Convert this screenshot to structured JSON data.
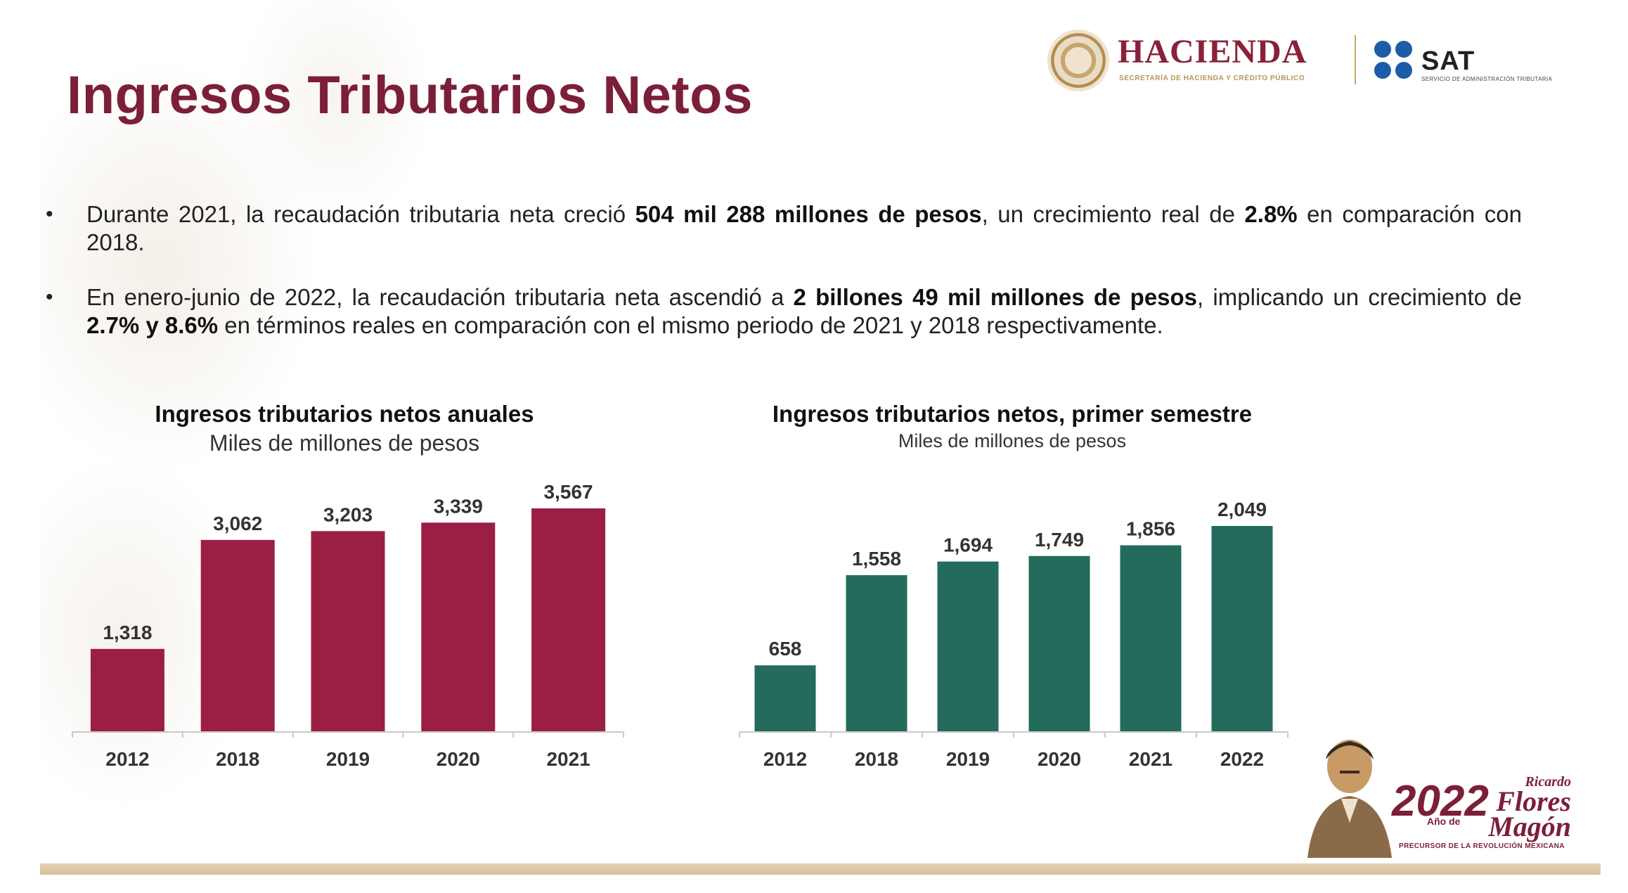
{
  "header": {
    "title": "Ingresos Tributarios Netos",
    "logos": {
      "hacienda_name": "HACIENDA",
      "hacienda_subtitle": "SECRETARÍA DE HACIENDA Y CRÉDITO PÚBLICO",
      "sat_name": "SAT",
      "sat_subtitle": "SERVICIO DE ADMINISTRACIÓN TRIBUTARIA"
    }
  },
  "bullets": [
    {
      "parts": [
        {
          "text": "Durante 2021, la recaudación tributaria neta creció ",
          "bold": false
        },
        {
          "text": "504 mil 288 millones de pesos",
          "bold": true
        },
        {
          "text": ", un crecimiento real de ",
          "bold": false
        },
        {
          "text": "2.8%",
          "bold": true
        },
        {
          "text": " en comparación con 2018.",
          "bold": false
        }
      ]
    },
    {
      "parts": [
        {
          "text": "En enero-junio de 2022, la recaudación tributaria neta ascendió a ",
          "bold": false
        },
        {
          "text": "2 billones 49 mil millones de pesos",
          "bold": true
        },
        {
          "text": ", implicando un crecimiento de ",
          "bold": false
        },
        {
          "text": "2.7% y 8.6%",
          "bold": true
        },
        {
          "text": " en términos reales en comparación con el mismo periodo de 2021 y 2018 respectivamente.",
          "bold": false
        }
      ]
    }
  ],
  "chart_data": [
    {
      "type": "bar",
      "title": "Ingresos tributarios netos anuales",
      "subtitle": "Miles de millones de pesos",
      "categories": [
        "2012",
        "2018",
        "2019",
        "2020",
        "2021"
      ],
      "values": [
        1318,
        3062,
        3203,
        3339,
        3567
      ],
      "value_labels": [
        "1,318",
        "3,062",
        "3,203",
        "3,339",
        "3,567"
      ],
      "ylim": [
        0,
        3567
      ],
      "color": "#9b1f43",
      "grid": false,
      "legend": "none"
    },
    {
      "type": "bar",
      "title": "Ingresos tributarios netos, primer semestre",
      "subtitle": "Miles de millones de pesos",
      "categories": [
        "2012",
        "2018",
        "2019",
        "2020",
        "2021",
        "2022"
      ],
      "values": [
        658,
        1558,
        1694,
        1749,
        1856,
        2049
      ],
      "value_labels": [
        "658",
        "1,558",
        "1,694",
        "1,749",
        "1,856",
        "2,049"
      ],
      "ylim": [
        0,
        2049
      ],
      "color": "#256b5c",
      "grid": false,
      "legend": "none"
    }
  ],
  "footer": {
    "year": "2022",
    "year_prefix": "Año de",
    "name_first": "Ricardo",
    "name_middle": "Flores",
    "name_last": "Magón",
    "tagline": "PRECURSOR DE LA REVOLUCIÓN MEXICANA"
  }
}
